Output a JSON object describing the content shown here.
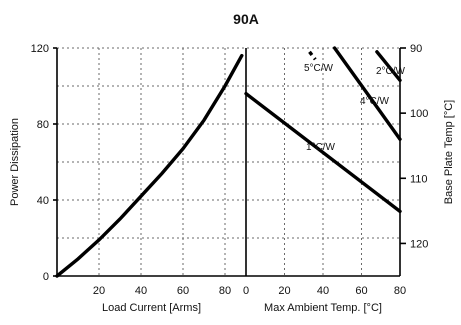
{
  "chart_data": [
    {
      "type": "line",
      "title": "90A",
      "xlabel": "Load Current [Arms]",
      "ylabel": "Power Dissipation",
      "xlim": [
        0,
        90
      ],
      "ylim": [
        0,
        120
      ],
      "x_ticks": [
        "20",
        "40",
        "60",
        "80"
      ],
      "y_ticks": [
        "0",
        "40",
        "80",
        "120"
      ],
      "grid": true,
      "series": [
        {
          "x": [
            0,
            10,
            20,
            30,
            40,
            50,
            60,
            70,
            80,
            88
          ],
          "y": [
            0,
            9,
            19,
            30,
            42,
            54,
            67,
            82,
            100,
            116
          ]
        }
      ]
    },
    {
      "type": "line",
      "xlabel": "Max Ambient Temp. [°C]",
      "ylabel": "Base Plate Temp [°C]",
      "xlim": [
        0,
        80
      ],
      "ylim": [
        0,
        120
      ],
      "x_ticks": [
        "0",
        "20",
        "40",
        "60",
        "80"
      ],
      "right_axis_ticks": [
        "90",
        "100",
        "110",
        "120"
      ],
      "right_axis_range": [
        90,
        125
      ],
      "grid": true,
      "annotations": [
        "1°C/W",
        "4°C/W",
        "5°C/W",
        "2°C/W"
      ],
      "series": [
        {
          "name": "1°C/W",
          "x": [
            0,
            80
          ],
          "y": [
            96,
            34
          ]
        },
        {
          "name": "4°C/W",
          "x": [
            46,
            80
          ],
          "y": [
            120,
            72
          ]
        },
        {
          "name": "5°C/W",
          "x": [
            33,
            36
          ],
          "y": [
            118,
            114
          ]
        },
        {
          "name": "2°C/W",
          "x": [
            68,
            80
          ],
          "y": [
            118,
            103
          ]
        }
      ]
    }
  ]
}
